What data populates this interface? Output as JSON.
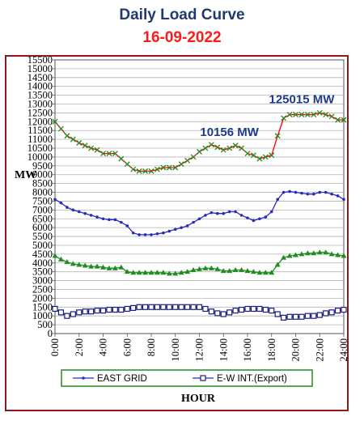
{
  "header": {
    "title": "Daily Load Curve",
    "date": "16-09-2022"
  },
  "chart_data": {
    "type": "line",
    "ylabel": "MW",
    "xlabel": "HOUR",
    "ylim": [
      0,
      15500
    ],
    "yticks": [
      0,
      500,
      1000,
      1500,
      2000,
      2500,
      3000,
      3500,
      4000,
      4500,
      5000,
      5500,
      6000,
      6500,
      7000,
      7500,
      8000,
      8500,
      9000,
      9500,
      10000,
      10500,
      11000,
      11500,
      12000,
      12500,
      13000,
      13500,
      14000,
      14500,
      15000,
      15500
    ],
    "xlim": [
      0,
      24
    ],
    "xtick_labels": [
      "0:00",
      "2:00",
      "4:00",
      "6:00",
      "8:00",
      "10:00",
      "12:00",
      "14:00",
      "16:00",
      "18:00",
      "20:00",
      "22:00",
      "24:00"
    ],
    "annotations": [
      {
        "text": "10156 MW",
        "x": 14.5,
        "y": 11200,
        "color": "#1f3a8a"
      },
      {
        "text": "125015 MW",
        "x": 20.5,
        "y": 13050,
        "color": "#1f3a8a"
      }
    ],
    "series": [
      {
        "name": "",
        "color": "#ff0000",
        "marker": "x",
        "marker_color": "#228b22",
        "points": [
          [
            0,
            12000
          ],
          [
            0.5,
            11600
          ],
          [
            1,
            11200
          ],
          [
            1.5,
            11000
          ],
          [
            2,
            10800
          ],
          [
            2.5,
            10650
          ],
          [
            3,
            10500
          ],
          [
            3.5,
            10400
          ],
          [
            4,
            10200
          ],
          [
            4.5,
            10200
          ],
          [
            5,
            10200
          ],
          [
            5.5,
            9900
          ],
          [
            6,
            9600
          ],
          [
            6.5,
            9300
          ],
          [
            7,
            9200
          ],
          [
            7.5,
            9200
          ],
          [
            8,
            9200
          ],
          [
            8.5,
            9300
          ],
          [
            9,
            9400
          ],
          [
            9.5,
            9400
          ],
          [
            10,
            9400
          ],
          [
            10.5,
            9600
          ],
          [
            11,
            9800
          ],
          [
            11.5,
            10000
          ],
          [
            12,
            10300
          ],
          [
            12.5,
            10500
          ],
          [
            13,
            10700
          ],
          [
            13.5,
            10550
          ],
          [
            14,
            10400
          ],
          [
            14.5,
            10500
          ],
          [
            15,
            10650
          ],
          [
            15.5,
            10500
          ],
          [
            16,
            10200
          ],
          [
            16.5,
            10100
          ],
          [
            17,
            9900
          ],
          [
            17.5,
            10000
          ],
          [
            18,
            10100
          ],
          [
            18.5,
            11200
          ],
          [
            19,
            12200
          ],
          [
            19.5,
            12400
          ],
          [
            20,
            12400
          ],
          [
            20.5,
            12400
          ],
          [
            21,
            12400
          ],
          [
            21.5,
            12400
          ],
          [
            22,
            12500
          ],
          [
            22.5,
            12400
          ],
          [
            23,
            12300
          ],
          [
            23.5,
            12100
          ],
          [
            24,
            12100
          ]
        ]
      },
      {
        "name": "EAST GRID",
        "color": "#2a2ac0",
        "marker": "dot",
        "marker_color": "#2a2ac0",
        "points": [
          [
            0,
            7600
          ],
          [
            0.5,
            7400
          ],
          [
            1,
            7150
          ],
          [
            1.5,
            7000
          ],
          [
            2,
            6900
          ],
          [
            2.5,
            6800
          ],
          [
            3,
            6700
          ],
          [
            3.5,
            6600
          ],
          [
            4,
            6500
          ],
          [
            4.5,
            6450
          ],
          [
            5,
            6450
          ],
          [
            5.5,
            6300
          ],
          [
            6,
            6100
          ],
          [
            6.5,
            5700
          ],
          [
            7,
            5600
          ],
          [
            7.5,
            5600
          ],
          [
            8,
            5600
          ],
          [
            8.5,
            5650
          ],
          [
            9,
            5700
          ],
          [
            9.5,
            5800
          ],
          [
            10,
            5900
          ],
          [
            10.5,
            6000
          ],
          [
            11,
            6100
          ],
          [
            11.5,
            6300
          ],
          [
            12,
            6500
          ],
          [
            12.5,
            6700
          ],
          [
            13,
            6850
          ],
          [
            13.5,
            6800
          ],
          [
            14,
            6800
          ],
          [
            14.5,
            6900
          ],
          [
            15,
            6900
          ],
          [
            15.5,
            6700
          ],
          [
            16,
            6550
          ],
          [
            16.5,
            6400
          ],
          [
            17,
            6500
          ],
          [
            17.5,
            6600
          ],
          [
            18,
            6900
          ],
          [
            18.5,
            7600
          ],
          [
            19,
            8000
          ],
          [
            19.5,
            8050
          ],
          [
            20,
            8000
          ],
          [
            20.5,
            7950
          ],
          [
            21,
            7900
          ],
          [
            21.5,
            7900
          ],
          [
            22,
            8000
          ],
          [
            22.5,
            8000
          ],
          [
            23,
            7900
          ],
          [
            23.5,
            7800
          ],
          [
            24,
            7600
          ]
        ]
      },
      {
        "name": "",
        "color": "#228b22",
        "marker": "triangle",
        "marker_color": "#228b22",
        "points": [
          [
            0,
            4400
          ],
          [
            0.5,
            4200
          ],
          [
            1,
            4050
          ],
          [
            1.5,
            3950
          ],
          [
            2,
            3900
          ],
          [
            2.5,
            3850
          ],
          [
            3,
            3800
          ],
          [
            3.5,
            3800
          ],
          [
            4,
            3750
          ],
          [
            4.5,
            3700
          ],
          [
            5,
            3700
          ],
          [
            5.5,
            3750
          ],
          [
            6,
            3500
          ],
          [
            6.5,
            3450
          ],
          [
            7,
            3450
          ],
          [
            7.5,
            3450
          ],
          [
            8,
            3450
          ],
          [
            8.5,
            3450
          ],
          [
            9,
            3450
          ],
          [
            9.5,
            3400
          ],
          [
            10,
            3400
          ],
          [
            10.5,
            3450
          ],
          [
            11,
            3500
          ],
          [
            11.5,
            3600
          ],
          [
            12,
            3650
          ],
          [
            12.5,
            3700
          ],
          [
            13,
            3700
          ],
          [
            13.5,
            3650
          ],
          [
            14,
            3550
          ],
          [
            14.5,
            3550
          ],
          [
            15,
            3600
          ],
          [
            15.5,
            3600
          ],
          [
            16,
            3550
          ],
          [
            16.5,
            3500
          ],
          [
            17,
            3450
          ],
          [
            17.5,
            3450
          ],
          [
            18,
            3450
          ],
          [
            18.5,
            3900
          ],
          [
            19,
            4300
          ],
          [
            19.5,
            4400
          ],
          [
            20,
            4450
          ],
          [
            20.5,
            4500
          ],
          [
            21,
            4550
          ],
          [
            21.5,
            4550
          ],
          [
            22,
            4600
          ],
          [
            22.5,
            4600
          ],
          [
            23,
            4500
          ],
          [
            23.5,
            4450
          ],
          [
            24,
            4400
          ]
        ]
      },
      {
        "name": "E-W INT.(Export)",
        "color": "#2a2ac0",
        "marker": "square",
        "marker_color": "#1a1a80",
        "points": [
          [
            0,
            1400
          ],
          [
            0.5,
            1200
          ],
          [
            1,
            1000
          ],
          [
            1.5,
            1100
          ],
          [
            2,
            1200
          ],
          [
            2.5,
            1250
          ],
          [
            3,
            1250
          ],
          [
            3.5,
            1300
          ],
          [
            4,
            1300
          ],
          [
            4.5,
            1350
          ],
          [
            5,
            1350
          ],
          [
            5.5,
            1350
          ],
          [
            6,
            1400
          ],
          [
            6.5,
            1450
          ],
          [
            7,
            1500
          ],
          [
            7.5,
            1500
          ],
          [
            8,
            1500
          ],
          [
            8.5,
            1500
          ],
          [
            9,
            1500
          ],
          [
            9.5,
            1500
          ],
          [
            10,
            1500
          ],
          [
            10.5,
            1500
          ],
          [
            11,
            1500
          ],
          [
            11.5,
            1500
          ],
          [
            12,
            1500
          ],
          [
            12.5,
            1400
          ],
          [
            13,
            1250
          ],
          [
            13.5,
            1150
          ],
          [
            14,
            1100
          ],
          [
            14.5,
            1200
          ],
          [
            15,
            1300
          ],
          [
            15.5,
            1350
          ],
          [
            16,
            1400
          ],
          [
            16.5,
            1400
          ],
          [
            17,
            1400
          ],
          [
            17.5,
            1350
          ],
          [
            18,
            1300
          ],
          [
            18.5,
            1100
          ],
          [
            19,
            900
          ],
          [
            19.5,
            950
          ],
          [
            20,
            950
          ],
          [
            20.5,
            950
          ],
          [
            21,
            1000
          ],
          [
            21.5,
            1000
          ],
          [
            22,
            1050
          ],
          [
            22.5,
            1150
          ],
          [
            23,
            1200
          ],
          [
            23.5,
            1300
          ],
          [
            24,
            1350
          ]
        ]
      }
    ],
    "legend_placement": "bottom"
  }
}
